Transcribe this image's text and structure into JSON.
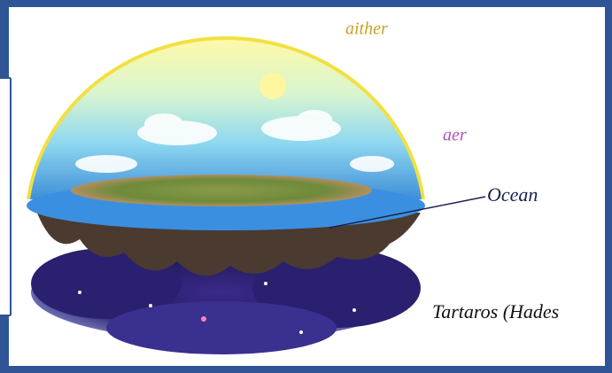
{
  "labels": {
    "aither": "aither",
    "aer": "aer",
    "ocean": "Ocean",
    "tartaros": "Tartaros (Hades"
  }
}
